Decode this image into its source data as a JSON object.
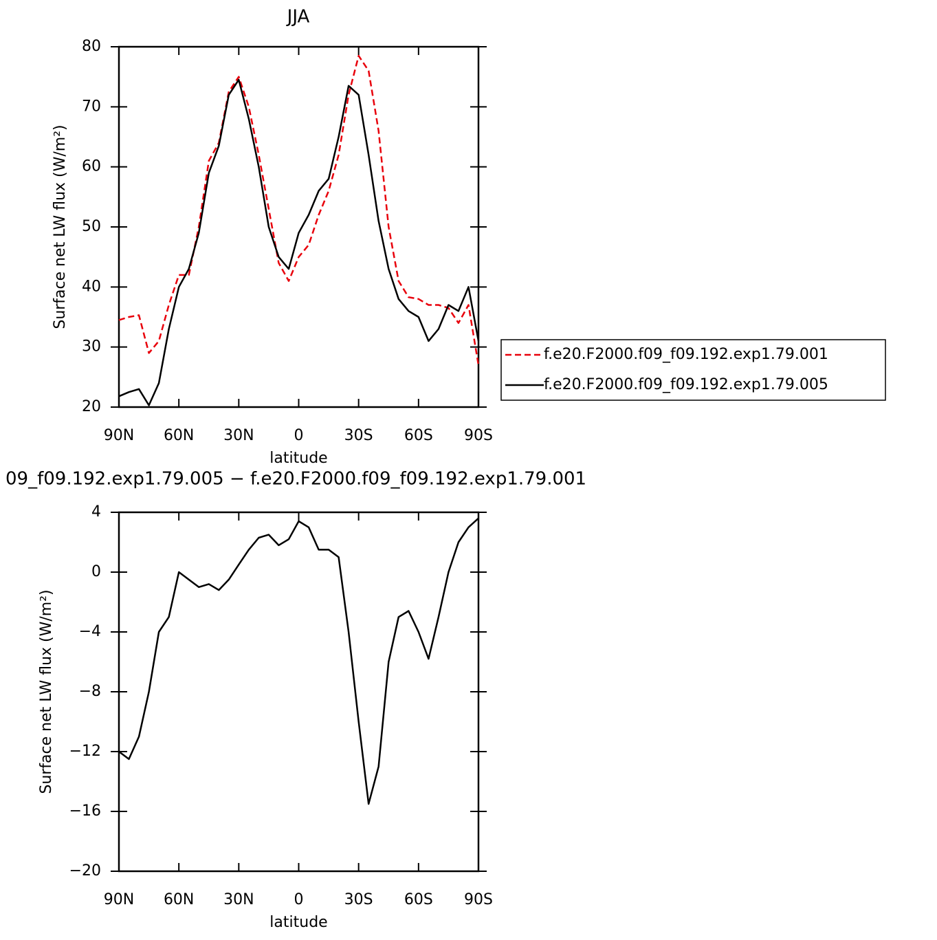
{
  "chart_data": [
    {
      "type": "line",
      "title": "JJA",
      "xlabel": "latitude",
      "ylabel": "Surface net LW flux (W/m²)",
      "x": [
        90,
        85,
        80,
        75,
        70,
        65,
        60,
        55,
        50,
        45,
        40,
        35,
        30,
        25,
        20,
        15,
        10,
        5,
        0,
        -5,
        -10,
        -15,
        -20,
        -25,
        -30,
        -35,
        -40,
        -45,
        -50,
        -55,
        -60,
        -65,
        -70,
        -75,
        -80,
        -85,
        -90
      ],
      "xlim": [
        90,
        -90
      ],
      "xticks": [
        {
          "value": 90,
          "label": "90N"
        },
        {
          "value": 60,
          "label": "60N"
        },
        {
          "value": 30,
          "label": "30N"
        },
        0,
        {
          "value": -30,
          "label": "30S"
        },
        {
          "value": -60,
          "label": "60S"
        },
        {
          "value": -90,
          "label": "90S"
        }
      ],
      "ylim": [
        20,
        80
      ],
      "yticks": [
        20,
        30,
        40,
        50,
        60,
        70,
        80
      ],
      "legend": "right",
      "series": [
        {
          "name": "f.e20.F2000.f09_f09.192.exp1.79.001",
          "color": "#e8000b",
          "line_style": "dashed",
          "values": [
            34.5,
            35,
            35.3,
            29,
            31,
            37,
            42,
            42,
            50,
            61,
            64,
            72.5,
            75,
            70,
            62,
            53,
            44,
            41,
            45,
            47,
            52,
            56,
            62,
            72,
            78.5,
            76,
            66,
            50,
            41,
            38.3,
            38,
            37,
            37,
            36.5,
            34,
            37,
            27
          ]
        },
        {
          "name": "f.e20.F2000.f09_f09.192.exp1.79.005",
          "color": "#000000",
          "line_style": "solid",
          "values": [
            21.8,
            22.5,
            23,
            20.3,
            24,
            33,
            40,
            43,
            49,
            59,
            63.5,
            72,
            74.5,
            68,
            60,
            50,
            45,
            43,
            49,
            52,
            56,
            58,
            65,
            73.5,
            72,
            62,
            51,
            43,
            38,
            36,
            35,
            31,
            33,
            37,
            36,
            40,
            31
          ]
        }
      ]
    },
    {
      "type": "line",
      "title": "09_f09.192.exp1.79.005 − f.e20.F2000.f09_f09.192.exp1.79.001",
      "xlabel": "latitude",
      "ylabel": "Surface net LW flux (W/m²)",
      "x": [
        90,
        85,
        80,
        75,
        70,
        65,
        60,
        55,
        50,
        45,
        40,
        35,
        30,
        25,
        20,
        15,
        10,
        5,
        0,
        -5,
        -10,
        -15,
        -20,
        -25,
        -30,
        -35,
        -40,
        -45,
        -50,
        -55,
        -60,
        -65,
        -70,
        -75,
        -80,
        -85,
        -90
      ],
      "xlim": [
        90,
        -90
      ],
      "xticks": [
        {
          "value": 90,
          "label": "90N"
        },
        {
          "value": 60,
          "label": "60N"
        },
        {
          "value": 30,
          "label": "30N"
        },
        0,
        {
          "value": -30,
          "label": "30S"
        },
        {
          "value": -60,
          "label": "60S"
        },
        {
          "value": -90,
          "label": "90S"
        }
      ],
      "ylim": [
        -20,
        4
      ],
      "yticks": [
        {
          "value": -20,
          "label": "−20"
        },
        {
          "value": -16,
          "label": "−16"
        },
        {
          "value": -12,
          "label": "−12"
        },
        {
          "value": -8,
          "label": "−8"
        },
        {
          "value": -4,
          "label": "−4"
        },
        0,
        4
      ],
      "series": [
        {
          "color": "#000000",
          "line_style": "solid",
          "values": [
            -12,
            -12.5,
            -11,
            -8,
            -4,
            -3,
            0,
            -0.5,
            -1,
            -0.8,
            -1.2,
            -0.5,
            0.5,
            1.5,
            2.3,
            2.5,
            1.8,
            2.2,
            3.4,
            3,
            1.5,
            1.5,
            1,
            -4,
            -10,
            -15.5,
            -13,
            -6,
            -3,
            -2.6,
            -4,
            -5.8,
            -3,
            0,
            2,
            3,
            3.6
          ]
        }
      ]
    }
  ]
}
